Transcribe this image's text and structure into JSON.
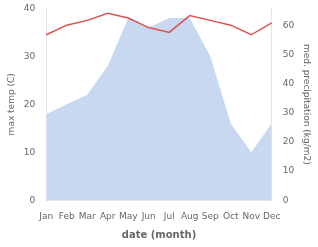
{
  "chart_data": {
    "type": "line",
    "categories": [
      "Jan",
      "Feb",
      "Mar",
      "Apr",
      "May",
      "Jun",
      "Jul",
      "Aug",
      "Sep",
      "Oct",
      "Nov",
      "Dec"
    ],
    "series": [
      {
        "type": "area",
        "color": "#c8d8f0",
        "values": [
          18,
          20,
          22,
          28,
          38,
          36,
          38,
          38,
          30,
          16,
          10,
          16
        ]
      },
      {
        "type": "line",
        "color": "#d9534f",
        "values": [
          34.5,
          36.5,
          37.5,
          39.0,
          38.0,
          36.0,
          35.0,
          38.5,
          37.5,
          36.5,
          34.5,
          37.0
        ]
      }
    ],
    "xlabel": "date (month)",
    "ylabel": "max temp (C)",
    "y2label": "med. precipitation (kg/m2)",
    "ylim": [
      0,
      40
    ],
    "yticks": [
      0,
      10,
      20,
      30,
      40
    ],
    "y2lim": [
      0,
      66
    ],
    "y2ticks": [
      0,
      10,
      20,
      30,
      40,
      50,
      60
    ],
    "grid": false
  }
}
